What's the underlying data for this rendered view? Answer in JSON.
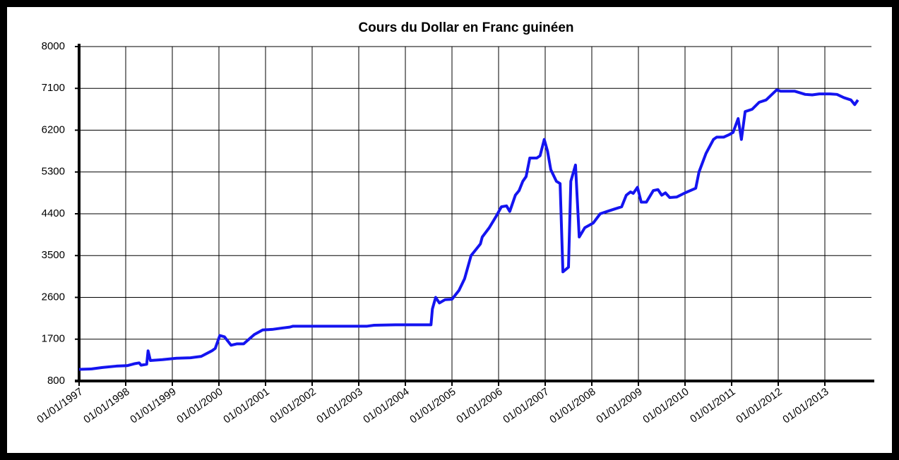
{
  "chart_data": {
    "type": "line",
    "title": "Cours du Dollar en Franc guinéen",
    "x": [
      1997.0,
      1997.27,
      1997.5,
      1997.8,
      1998.03,
      1998.18,
      1998.29,
      1998.33,
      1998.45,
      1998.48,
      1998.53,
      1998.79,
      1999.09,
      1999.39,
      1999.62,
      1999.85,
      1999.92,
      2000.02,
      2000.12,
      2000.26,
      2000.39,
      2000.53,
      2000.76,
      2000.94,
      2001.14,
      2001.36,
      2001.52,
      2001.59,
      2003.18,
      2003.33,
      2003.79,
      2004.55,
      2004.58,
      2004.65,
      2004.73,
      2004.85,
      2005.0,
      2005.15,
      2005.27,
      2005.41,
      2005.53,
      2005.61,
      2005.65,
      2005.8,
      2005.95,
      2006.06,
      2006.17,
      2006.24,
      2006.36,
      2006.44,
      2006.52,
      2006.59,
      2006.67,
      2006.82,
      2006.89,
      2006.98,
      2007.05,
      2007.12,
      2007.24,
      2007.32,
      2007.38,
      2007.5,
      2007.55,
      2007.65,
      2007.73,
      2007.85,
      2008.03,
      2008.18,
      2008.33,
      2008.48,
      2008.64,
      2008.74,
      2008.83,
      2008.89,
      2008.98,
      2009.06,
      2009.17,
      2009.32,
      2009.42,
      2009.5,
      2009.58,
      2009.67,
      2009.82,
      2010.0,
      2010.23,
      2010.3,
      2010.45,
      2010.61,
      2010.68,
      2010.83,
      2010.94,
      2011.03,
      2011.14,
      2011.21,
      2011.29,
      2011.44,
      2011.59,
      2011.74,
      2011.97,
      2012.05,
      2012.35,
      2012.58,
      2012.73,
      2012.88,
      2013.11,
      2013.26,
      2013.41,
      2013.56,
      2013.64,
      2013.71
    ],
    "values": [
      1050,
      1060,
      1090,
      1120,
      1130,
      1170,
      1190,
      1140,
      1160,
      1450,
      1240,
      1260,
      1290,
      1300,
      1330,
      1450,
      1500,
      1780,
      1750,
      1570,
      1600,
      1600,
      1800,
      1900,
      1910,
      1940,
      1960,
      1980,
      1980,
      2000,
      2010,
      2010,
      2350,
      2600,
      2480,
      2550,
      2560,
      2750,
      3000,
      3500,
      3650,
      3750,
      3900,
      4100,
      4350,
      4550,
      4570,
      4450,
      4800,
      4900,
      5100,
      5200,
      5600,
      5600,
      5650,
      6000,
      5750,
      5350,
      5100,
      5050,
      3150,
      3250,
      5100,
      5450,
      3900,
      4100,
      4200,
      4400,
      4450,
      4500,
      4550,
      4800,
      4870,
      4840,
      4970,
      4650,
      4650,
      4900,
      4920,
      4800,
      4850,
      4750,
      4760,
      4850,
      4950,
      5300,
      5700,
      6000,
      6050,
      6050,
      6100,
      6150,
      6450,
      6000,
      6600,
      6650,
      6800,
      6850,
      7070,
      7040,
      7040,
      6970,
      6960,
      6980,
      6980,
      6970,
      6900,
      6850,
      6750,
      6850
    ],
    "color": "#1414f0",
    "xlim": [
      1997,
      2014
    ],
    "xticks": [
      {
        "value": 1997,
        "label": "01/01/1997"
      },
      {
        "value": 1998,
        "label": "01/01/1998"
      },
      {
        "value": 1999,
        "label": "01/01/1999"
      },
      {
        "value": 2000,
        "label": "01/01/2000"
      },
      {
        "value": 2001,
        "label": "01/01/2001"
      },
      {
        "value": 2002,
        "label": "01/01/2002"
      },
      {
        "value": 2003,
        "label": "01/01/2003"
      },
      {
        "value": 2004,
        "label": "01/01/2004"
      },
      {
        "value": 2005,
        "label": "01/01/2005"
      },
      {
        "value": 2006,
        "label": "01/01/2006"
      },
      {
        "value": 2007,
        "label": "01/01/2007"
      },
      {
        "value": 2008,
        "label": "01/01/2008"
      },
      {
        "value": 2009,
        "label": "01/01/2009"
      },
      {
        "value": 2010,
        "label": "01/01/2010"
      },
      {
        "value": 2011,
        "label": "01/01/2011"
      },
      {
        "value": 2012,
        "label": "01/01/2012"
      },
      {
        "value": 2013,
        "label": "01/01/2013"
      }
    ],
    "ylim": [
      800,
      8000
    ],
    "yticks": [
      800,
      1700,
      2600,
      3500,
      4400,
      5300,
      6200,
      7100,
      8000
    ],
    "grid": true
  }
}
